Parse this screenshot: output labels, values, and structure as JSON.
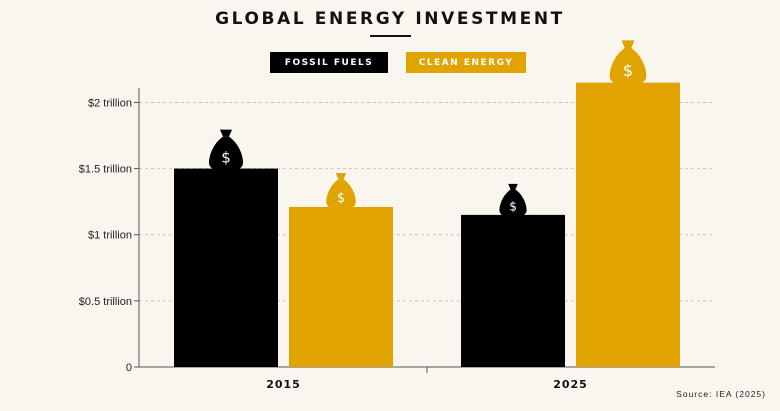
{
  "chart_data": {
    "type": "bar",
    "title": "GLOBAL ENERGY INVESTMENT",
    "categories": [
      "2015",
      "2025"
    ],
    "series": [
      {
        "name": "FOSSIL FUELS",
        "values": [
          1.5,
          1.15
        ],
        "color": "#000000",
        "icon": "money-bag-icon"
      },
      {
        "name": "CLEAN ENERGY",
        "values": [
          1.21,
          2.15
        ],
        "color": "#e0a300",
        "icon": "money-bag-icon"
      }
    ],
    "y_ticks": [
      {
        "value": 0,
        "label": "0"
      },
      {
        "value": 0.5,
        "label": "$0.5 trillion"
      },
      {
        "value": 1,
        "label": "$1 trillion"
      },
      {
        "value": 1.5,
        "label": "$1.5 trillion"
      },
      {
        "value": 2,
        "label": "$2 trillion"
      }
    ],
    "ylim": [
      0,
      2.2
    ],
    "grid": true,
    "legend": "top-center",
    "xlabel": "",
    "ylabel": ""
  },
  "source": "Source: IEA (2025)"
}
